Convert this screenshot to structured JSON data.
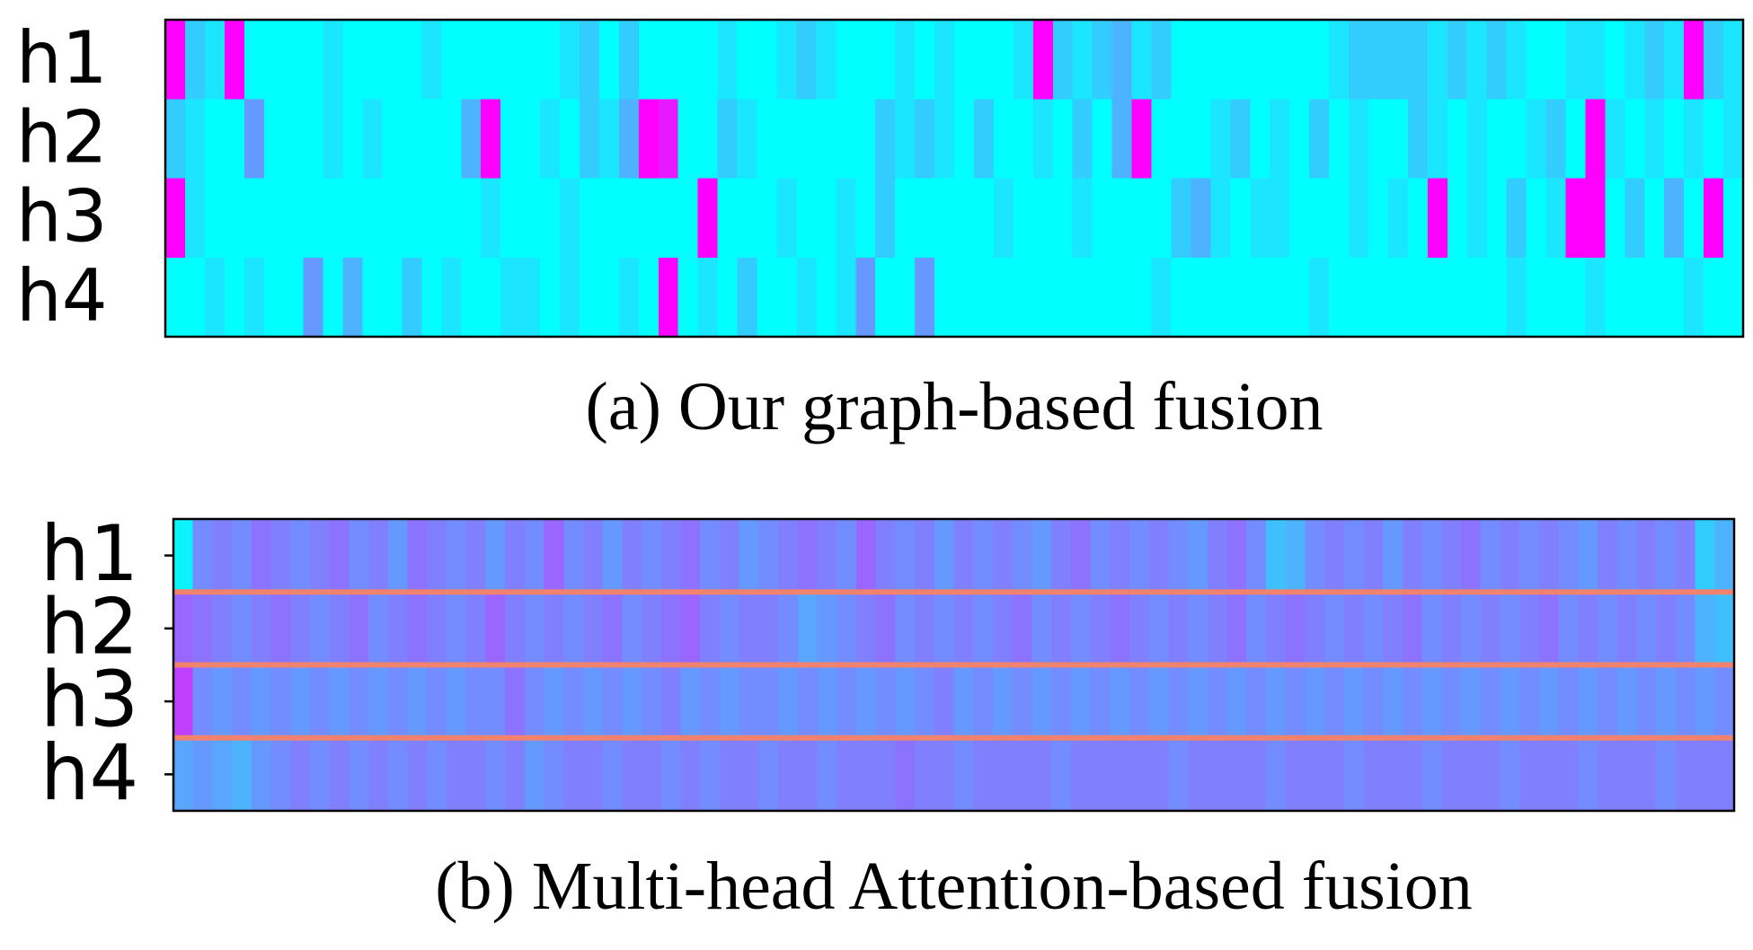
{
  "chart_data": [
    {
      "type": "heatmap",
      "title": "(a) Our graph-based fusion",
      "colormap": "cool",
      "row_ticks": false,
      "row_separators": false,
      "rows": [
        "h1",
        "h2",
        "h3",
        "h4"
      ],
      "values": [
        [
          1,
          0.2,
          0.1,
          1,
          0,
          0,
          0,
          0,
          0.1,
          0,
          0,
          0,
          0,
          0.1,
          0,
          0,
          0,
          0,
          0,
          0,
          0.1,
          0.2,
          0,
          0.2,
          0,
          0,
          0,
          0,
          0.1,
          0,
          0,
          0.1,
          0.2,
          0.1,
          0,
          0,
          0,
          0.1,
          0,
          0.1,
          0,
          0,
          0,
          0.1,
          1,
          0.2,
          0.1,
          0.2,
          0.3,
          0.1,
          0.2,
          0,
          0,
          0,
          0,
          0,
          0,
          0,
          0,
          0.1,
          0.2,
          0.2,
          0.2,
          0.2,
          0.1,
          0.2,
          0.1,
          0.2,
          0.1,
          0,
          0,
          0.1,
          0.1,
          0,
          0.1,
          0.2,
          0.1,
          1,
          0.2,
          0.1
        ],
        [
          0.2,
          0.1,
          0,
          0,
          0.4,
          0,
          0,
          0,
          0.1,
          0,
          0.1,
          0,
          0,
          0,
          0,
          0.3,
          1,
          0,
          0,
          0.1,
          0,
          0.2,
          0.1,
          0.3,
          1,
          0.9,
          0,
          0,
          0.2,
          0.1,
          0,
          0,
          0,
          0,
          0,
          0,
          0.2,
          0.1,
          0.2,
          0.1,
          0,
          0.2,
          0,
          0,
          0.1,
          0,
          0.2,
          0,
          0.3,
          1,
          0,
          0,
          0,
          0.1,
          0.2,
          0,
          0.1,
          0,
          0.2,
          0,
          0.1,
          0,
          0,
          0.2,
          0.1,
          0,
          0.1,
          0,
          0,
          0.1,
          0.2,
          0,
          1,
          0.1,
          0,
          0.1,
          0,
          0.1,
          0,
          0.1
        ],
        [
          1,
          0.1,
          0,
          0,
          0,
          0,
          0,
          0,
          0,
          0,
          0,
          0,
          0,
          0,
          0,
          0,
          0.1,
          0,
          0,
          0,
          0.1,
          0,
          0,
          0,
          0,
          0,
          0,
          1,
          0,
          0,
          0,
          0.1,
          0,
          0,
          0.1,
          0,
          0.2,
          0,
          0,
          0,
          0,
          0,
          0.1,
          0,
          0,
          0,
          0.1,
          0,
          0,
          0,
          0,
          0.2,
          0.3,
          0.1,
          0,
          0.1,
          0.1,
          0,
          0,
          0,
          0.1,
          0,
          0.1,
          0,
          1,
          0,
          0.1,
          0,
          0.2,
          0,
          0.1,
          1,
          1,
          0,
          0.2,
          0,
          0.3,
          0,
          1,
          0
        ],
        [
          0,
          0,
          0.1,
          0,
          0.1,
          0,
          0,
          0.4,
          0,
          0.3,
          0,
          0,
          0.2,
          0,
          0.1,
          0,
          0,
          0.1,
          0.1,
          0,
          0.1,
          0,
          0,
          0.1,
          0,
          1,
          0,
          0.1,
          0,
          0.2,
          0,
          0,
          0.1,
          0,
          0.1,
          0.4,
          0,
          0,
          0.4,
          0,
          0,
          0,
          0,
          0,
          0,
          0,
          0,
          0,
          0,
          0,
          0.1,
          0,
          0,
          0,
          0,
          0,
          0,
          0,
          0.1,
          0,
          0,
          0,
          0,
          0,
          0,
          0,
          0,
          0,
          0.1,
          0,
          0,
          0,
          0.1,
          0,
          0,
          0,
          0,
          0.1,
          0,
          0
        ]
      ]
    },
    {
      "type": "heatmap",
      "title": "(b) Multi-head Attention-based fusion",
      "colormap": "cool",
      "row_ticks": true,
      "row_separators": true,
      "rows": [
        "h1",
        "h2",
        "h3",
        "h4"
      ],
      "values": [
        [
          0.05,
          0.45,
          0.5,
          0.45,
          0.55,
          0.5,
          0.45,
          0.5,
          0.55,
          0.45,
          0.5,
          0.4,
          0.55,
          0.5,
          0.45,
          0.5,
          0.4,
          0.5,
          0.45,
          0.6,
          0.45,
          0.5,
          0.4,
          0.5,
          0.45,
          0.5,
          0.55,
          0.45,
          0.5,
          0.4,
          0.45,
          0.5,
          0.55,
          0.5,
          0.45,
          0.6,
          0.5,
          0.45,
          0.5,
          0.4,
          0.5,
          0.45,
          0.5,
          0.45,
          0.4,
          0.5,
          0.55,
          0.45,
          0.5,
          0.45,
          0.5,
          0.45,
          0.4,
          0.5,
          0.55,
          0.45,
          0.25,
          0.3,
          0.45,
          0.5,
          0.45,
          0.5,
          0.4,
          0.5,
          0.45,
          0.5,
          0.55,
          0.45,
          0.5,
          0.45,
          0.5,
          0.45,
          0.4,
          0.5,
          0.45,
          0.5,
          0.45,
          0.5,
          0.2,
          0.3
        ],
        [
          0.6,
          0.55,
          0.5,
          0.45,
          0.5,
          0.55,
          0.5,
          0.45,
          0.5,
          0.55,
          0.45,
          0.5,
          0.55,
          0.5,
          0.45,
          0.5,
          0.6,
          0.5,
          0.45,
          0.5,
          0.45,
          0.5,
          0.55,
          0.45,
          0.5,
          0.55,
          0.6,
          0.5,
          0.45,
          0.5,
          0.5,
          0.45,
          0.35,
          0.4,
          0.45,
          0.5,
          0.55,
          0.45,
          0.5,
          0.45,
          0.5,
          0.45,
          0.5,
          0.55,
          0.45,
          0.5,
          0.45,
          0.5,
          0.55,
          0.5,
          0.45,
          0.5,
          0.45,
          0.5,
          0.55,
          0.45,
          0.5,
          0.55,
          0.5,
          0.45,
          0.5,
          0.45,
          0.5,
          0.55,
          0.45,
          0.5,
          0.45,
          0.5,
          0.45,
          0.5,
          0.55,
          0.45,
          0.5,
          0.45,
          0.5,
          0.45,
          0.5,
          0.45,
          0.3,
          0.25
        ],
        [
          0.75,
          0.45,
          0.4,
          0.45,
          0.4,
          0.45,
          0.4,
          0.45,
          0.4,
          0.45,
          0.4,
          0.45,
          0.4,
          0.45,
          0.4,
          0.45,
          0.45,
          0.55,
          0.45,
          0.4,
          0.45,
          0.4,
          0.45,
          0.4,
          0.45,
          0.5,
          0.4,
          0.45,
          0.4,
          0.45,
          0.45,
          0.4,
          0.45,
          0.4,
          0.45,
          0.4,
          0.45,
          0.4,
          0.45,
          0.5,
          0.4,
          0.45,
          0.4,
          0.45,
          0.4,
          0.45,
          0.4,
          0.45,
          0.4,
          0.45,
          0.4,
          0.45,
          0.4,
          0.45,
          0.4,
          0.45,
          0.4,
          0.45,
          0.4,
          0.45,
          0.4,
          0.45,
          0.4,
          0.45,
          0.4,
          0.45,
          0.4,
          0.45,
          0.4,
          0.45,
          0.4,
          0.45,
          0.4,
          0.45,
          0.4,
          0.45,
          0.4,
          0.45,
          0.4,
          0.45
        ],
        [
          0.35,
          0.4,
          0.35,
          0.3,
          0.4,
          0.45,
          0.5,
          0.45,
          0.5,
          0.45,
          0.5,
          0.45,
          0.5,
          0.45,
          0.5,
          0.5,
          0.45,
          0.5,
          0.4,
          0.45,
          0.5,
          0.5,
          0.45,
          0.5,
          0.5,
          0.45,
          0.5,
          0.45,
          0.5,
          0.5,
          0.45,
          0.5,
          0.5,
          0.45,
          0.5,
          0.5,
          0.5,
          0.55,
          0.5,
          0.5,
          0.45,
          0.5,
          0.5,
          0.5,
          0.5,
          0.45,
          0.5,
          0.5,
          0.5,
          0.5,
          0.5,
          0.45,
          0.5,
          0.5,
          0.5,
          0.5,
          0.45,
          0.5,
          0.5,
          0.5,
          0.45,
          0.5,
          0.5,
          0.5,
          0.45,
          0.5,
          0.5,
          0.5,
          0.45,
          0.5,
          0.5,
          0.5,
          0.45,
          0.5,
          0.5,
          0.5,
          0.45,
          0.5,
          0.5,
          0.5
        ]
      ]
    }
  ]
}
